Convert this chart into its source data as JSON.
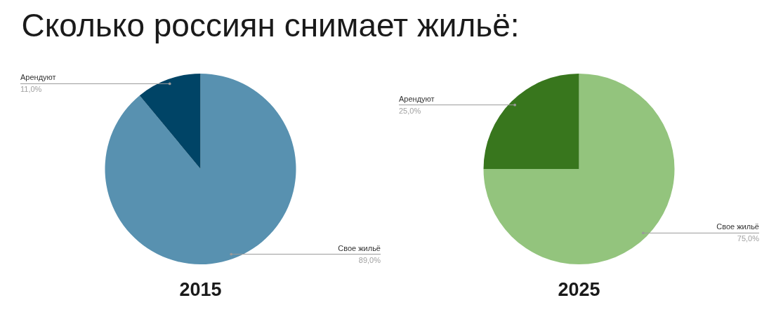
{
  "chart_data": [
    {
      "type": "pie",
      "title": "Сколько россиян снимает жильё:",
      "xlabel": "2015",
      "categories": [
        "Свое жильё",
        "Арендуют"
      ],
      "values": [
        89,
        11
      ],
      "colors": [
        "#5891b0",
        "#004466"
      ],
      "value_labels": [
        "89,0%",
        "11,0%"
      ]
    },
    {
      "type": "pie",
      "xlabel": "2025",
      "categories": [
        "Свое жильё",
        "Арендуют"
      ],
      "values": [
        75,
        25
      ],
      "colors": [
        "#93c47d",
        "#38761d"
      ],
      "value_labels": [
        "75,0%",
        "25,0%"
      ]
    }
  ]
}
